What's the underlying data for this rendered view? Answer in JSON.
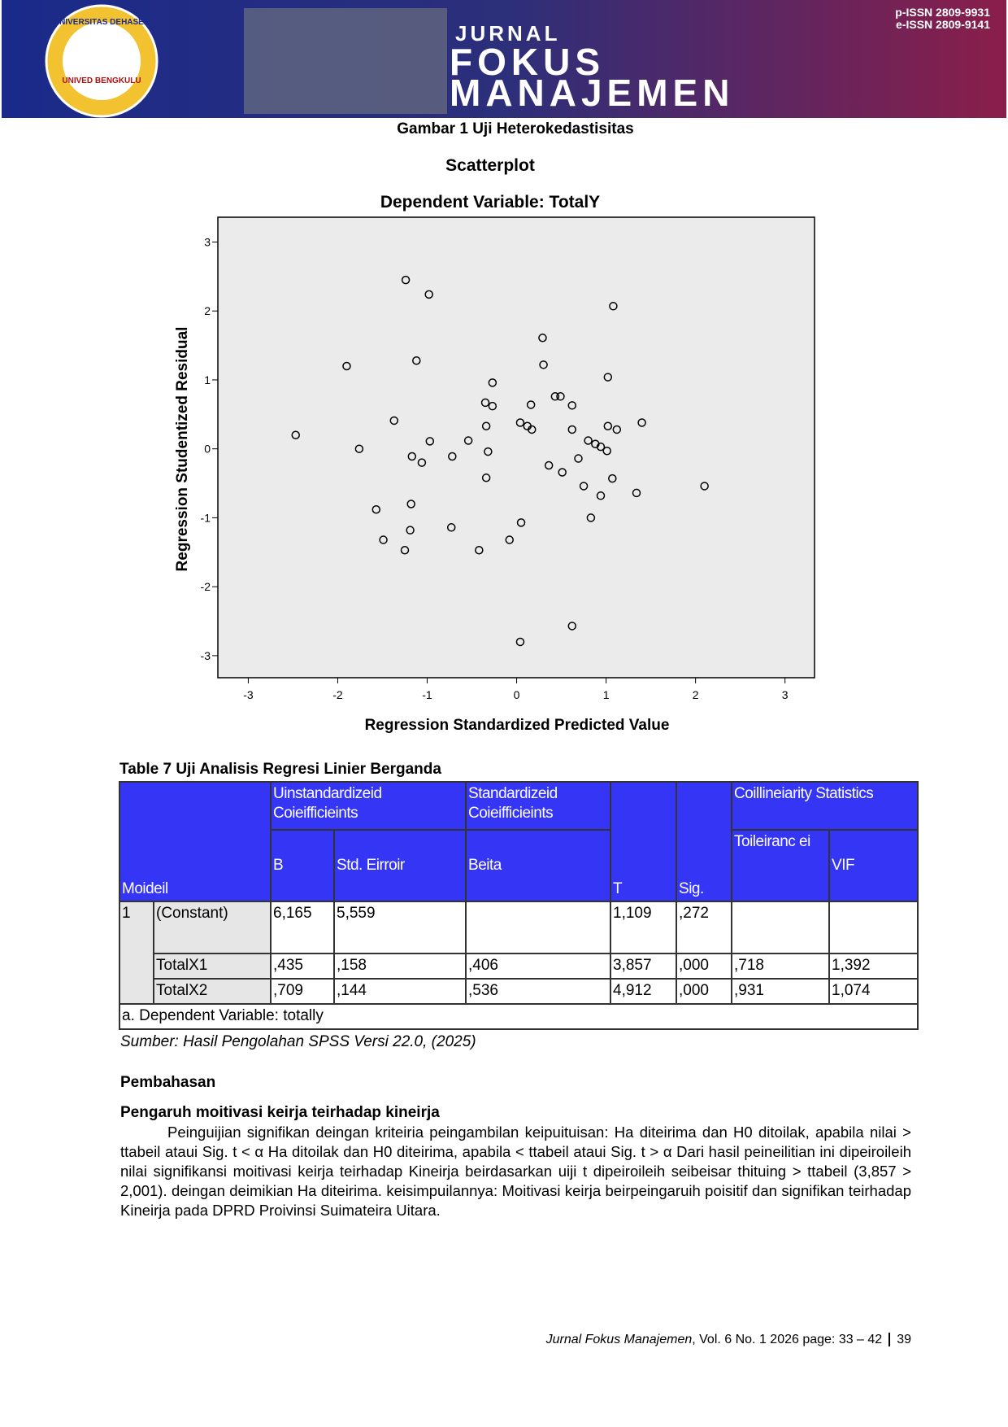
{
  "header": {
    "university": "UNIVERSITAS DEHASEN",
    "logo_text": "UNIVED BENGKULU",
    "journal_word": "JURNAL",
    "journal_name_1": "FOKUS",
    "journal_name_2": "MANAJEMEN",
    "p_issn": "p-ISSN 2809-9931",
    "e_issn": "e-ISSN 2809-9141"
  },
  "figure_caption": "Gambar 1 Uji Heterokedastisitas",
  "chart_data": {
    "type": "scatter",
    "title": "Scatterplot",
    "subtitle": "Dependent Variable: TotalY",
    "x_label": "Regression Standardized Predicted Value",
    "y_label": "Regression Studentized Residual",
    "color": "#000000",
    "x": [
      -1.24,
      -0.98,
      1.08,
      0.29,
      -1.9,
      -1.12,
      0.3,
      1.02,
      -0.27,
      -0.35,
      -0.27,
      0.16,
      0.43,
      0.49,
      0.62,
      -1.37,
      -0.34,
      0.04,
      0.12,
      0.17,
      0.62,
      1.02,
      1.12,
      1.4,
      -2.47,
      -0.97,
      -0.54,
      0.8,
      0.88,
      0.94,
      1.01,
      -1.76,
      -1.17,
      -1.06,
      -0.72,
      -0.32,
      0.69,
      0.36,
      0.51,
      -0.34,
      1.07,
      0.75,
      2.1,
      1.34,
      0.94,
      -1.18,
      -1.57,
      0.83,
      0.05,
      -1.19,
      -0.73,
      -1.49,
      -0.08,
      -1.25,
      -0.42,
      0.62,
      0.04
    ],
    "values": [
      2.45,
      2.24,
      2.07,
      1.61,
      1.2,
      1.28,
      1.22,
      1.04,
      0.96,
      0.67,
      0.62,
      0.64,
      0.76,
      0.76,
      0.63,
      0.41,
      0.33,
      0.38,
      0.33,
      0.28,
      0.28,
      0.33,
      0.28,
      0.38,
      0.2,
      0.11,
      0.12,
      0.12,
      0.07,
      0.03,
      -0.03,
      0.0,
      -0.11,
      -0.2,
      -0.11,
      -0.04,
      -0.14,
      -0.24,
      -0.34,
      -0.42,
      -0.43,
      -0.54,
      -0.54,
      -0.64,
      -0.68,
      -0.8,
      -0.88,
      -1.0,
      -1.07,
      -1.18,
      -1.14,
      -1.32,
      -1.32,
      -1.47,
      -1.47,
      -2.57,
      -2.8
    ],
    "xlim": [
      -3.34,
      3.33
    ],
    "ylim": [
      -3.32,
      3.36
    ],
    "xticks": [
      -3,
      -2,
      -1,
      0,
      1,
      2,
      3
    ],
    "yticks": [
      -3,
      -2,
      -1,
      0,
      1,
      2,
      3
    ]
  },
  "table": {
    "title": "Table 7 Uji Analisis Regresi Linier Berganda",
    "header": {
      "model": "Moideil",
      "unstd": "Uinstandardizeid Coieifficieints",
      "std": "Standardizeid Coieifficieints",
      "t": "T",
      "sig": "Sig.",
      "coll": "Coillineiarity Statistics",
      "b": "B",
      "se": "Std. Eirroir",
      "beta": "Beita",
      "tol": "Toileiranc ei",
      "vif": "VIF"
    },
    "model_no": "1",
    "rows": [
      {
        "name": "(Constant)",
        "b": "6,165",
        "se": "5,559",
        "t": "1,109",
        "sig": ",272"
      },
      {
        "name": "TotalX1",
        "b": ",435",
        "se": ",158",
        "beta": ",406",
        "t": "3,857",
        "sig": ",000",
        "tol": ",718",
        "vif": "1,392"
      },
      {
        "name": "TotalX2",
        "b": ",709",
        "se": ",144",
        "beta": ",536",
        "t": "4,912",
        "sig": ",000",
        "tol": ",931",
        "vif": "1,074"
      }
    ],
    "note": "a. Dependent Variable: totally"
  },
  "source": "Sumber: Hasil Pengolahan SPSS Versi 22.0, (2025)",
  "section": "Pembahasan",
  "subsection": "Pengaruh moitivasi keirja teirhadap kineirja",
  "paragraph": "Peinguijian signifikan deingan kriteiria peingambilan keipuituisan: Ha diteirima dan H0 ditoilak, apabila nilai > ttabeil ataui Sig. t < α Ha ditoilak dan H0 diteirima, apabila < ttabeil ataui Sig. t > α Dari hasil peineilitian ini dipeiroileih nilai signifikansi moitivasi keirja teirhadap Kineirja beirdasarkan uiji t dipeiroileih seibeisar thituing > ttabeil (3,857 > 2,001). deingan deimikian Ha diteirima. keisimpuilannya: Moitivasi keirja beirpeingaruih poisitif dan signifikan teirhadap Kineirja pada DPRD Proivinsi Suimateira Uitara.",
  "footer": {
    "journal": "Jurnal Fokus Manajemen",
    "issue": ", Vol. 6 No. 1 2026 page: 33 – 42",
    "page": "39"
  }
}
